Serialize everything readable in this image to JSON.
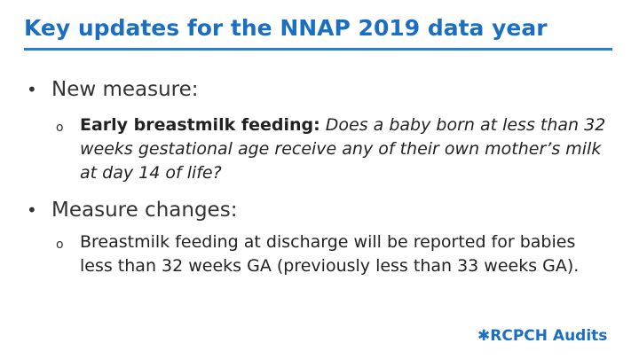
{
  "slide": {
    "title": "Key updates for the NNAP 2019 data year",
    "bullet_glyph": "•",
    "sub_bullet_glyph": "o",
    "items": [
      {
        "label": "New measure:",
        "sub": {
          "bold": "Early breastmilk feeding:",
          "italic": "Does a baby born at less than 32 weeks gestational age receive any of their own mother’s milk at day 14 of life?"
        }
      },
      {
        "label": "Measure changes:",
        "sub": {
          "text": "Breastmilk feeding at discharge will be reported for babies less than 32 weeks GA (previously less than 33 weeks GA)."
        }
      }
    ]
  },
  "logo": {
    "symbol": "✱",
    "brand": "RCPCH",
    "suffix": "Audits"
  },
  "colors": {
    "title": "#1a6fc2",
    "rule": "#2b7fd0",
    "text": "#222222"
  }
}
